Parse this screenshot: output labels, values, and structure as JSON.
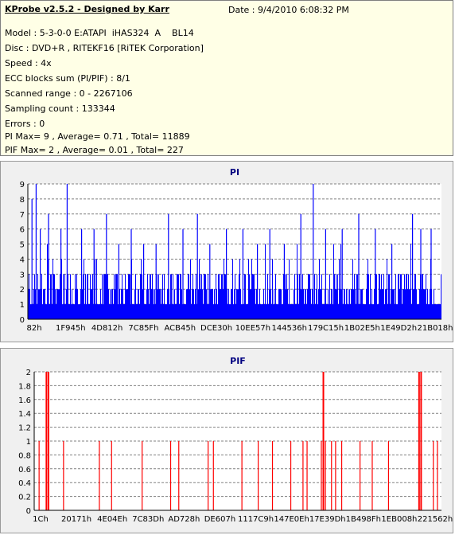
{
  "info": {
    "app_title": "KProbe v2.5.2 - Designed by Karr",
    "date": "Date : 9/4/2010 6:08:32 PM",
    "lines": [
      "Model : 5-3-0-0 E:ATAPI  iHAS324  A    BL14",
      "Disc : DVD+R , RITEKF16 [RiTEK Corporation]",
      "Speed : 4x",
      "ECC blocks sum (PI/PIF) : 8/1",
      "Scanned range : 0 - 2267106",
      "Sampling count : 133344",
      "Errors : 0",
      "PI Max= 9 , Average= 0.71 , Total= 11889",
      "PIF Max= 2 , Average= 0.01 , Total= 227"
    ]
  },
  "chart_data": [
    {
      "type": "bar",
      "title": "PI",
      "color": "#0000ff",
      "ylim": [
        0,
        9
      ],
      "yticks": [
        "0",
        "1",
        "2",
        "3",
        "4",
        "5",
        "6",
        "7",
        "8",
        "9"
      ],
      "xticks": [
        "82h",
        "1F945h",
        "4D812h",
        "7C85Fh",
        "ACB45h",
        "DCE30h",
        "10EE57h",
        "144536h",
        "179C15h",
        "1B02E5h",
        "1E49D2h",
        "21B018h"
      ],
      "grid": "dashed",
      "max": 9,
      "average": 0.71,
      "peaks": [
        {
          "pos": 0.01,
          "value": 8
        },
        {
          "pos": 0.02,
          "value": 9
        },
        {
          "pos": 0.03,
          "value": 6
        },
        {
          "pos": 0.05,
          "value": 7
        },
        {
          "pos": 0.08,
          "value": 6
        },
        {
          "pos": 0.095,
          "value": 9
        },
        {
          "pos": 0.13,
          "value": 6
        },
        {
          "pos": 0.16,
          "value": 6
        },
        {
          "pos": 0.19,
          "value": 7
        },
        {
          "pos": 0.22,
          "value": 5
        },
        {
          "pos": 0.25,
          "value": 6
        },
        {
          "pos": 0.28,
          "value": 5
        },
        {
          "pos": 0.31,
          "value": 5
        },
        {
          "pos": 0.34,
          "value": 7
        },
        {
          "pos": 0.375,
          "value": 6
        },
        {
          "pos": 0.41,
          "value": 7
        },
        {
          "pos": 0.44,
          "value": 5
        },
        {
          "pos": 0.48,
          "value": 6
        },
        {
          "pos": 0.52,
          "value": 6
        },
        {
          "pos": 0.555,
          "value": 5
        },
        {
          "pos": 0.585,
          "value": 6
        },
        {
          "pos": 0.62,
          "value": 5
        },
        {
          "pos": 0.66,
          "value": 7
        },
        {
          "pos": 0.69,
          "value": 9
        },
        {
          "pos": 0.72,
          "value": 6
        },
        {
          "pos": 0.76,
          "value": 6
        },
        {
          "pos": 0.8,
          "value": 7
        },
        {
          "pos": 0.84,
          "value": 6
        },
        {
          "pos": 0.88,
          "value": 5
        },
        {
          "pos": 0.93,
          "value": 7
        },
        {
          "pos": 0.95,
          "value": 6
        },
        {
          "pos": 0.975,
          "value": 6
        }
      ]
    },
    {
      "type": "bar",
      "title": "PIF",
      "color": "#ff0000",
      "ylim": [
        0,
        2
      ],
      "yticks": [
        "0",
        "0.2",
        "0.4",
        "0.6",
        "0.8",
        "1",
        "1.2",
        "1.4",
        "1.6",
        "1.8",
        "2"
      ],
      "xticks": [
        "1Ch",
        "20171h",
        "4E04Eh",
        "7C83Dh",
        "AD728h",
        "DE607h",
        "1117C9h",
        "147E0Eh",
        "17E39Dh",
        "1B498Fh",
        "1EB008h",
        "221562h"
      ],
      "grid": "dashed",
      "max": 2,
      "average": 0.01,
      "bars": [
        {
          "pos": 0.012,
          "value": 1
        },
        {
          "pos": 0.03,
          "value": 2
        },
        {
          "pos": 0.035,
          "value": 2
        },
        {
          "pos": 0.072,
          "value": 1
        },
        {
          "pos": 0.16,
          "value": 1
        },
        {
          "pos": 0.19,
          "value": 1
        },
        {
          "pos": 0.265,
          "value": 1
        },
        {
          "pos": 0.335,
          "value": 1
        },
        {
          "pos": 0.355,
          "value": 1
        },
        {
          "pos": 0.427,
          "value": 1
        },
        {
          "pos": 0.44,
          "value": 1
        },
        {
          "pos": 0.51,
          "value": 1
        },
        {
          "pos": 0.55,
          "value": 1
        },
        {
          "pos": 0.585,
          "value": 1
        },
        {
          "pos": 0.63,
          "value": 1
        },
        {
          "pos": 0.66,
          "value": 1
        },
        {
          "pos": 0.67,
          "value": 1
        },
        {
          "pos": 0.705,
          "value": 1
        },
        {
          "pos": 0.71,
          "value": 2
        },
        {
          "pos": 0.715,
          "value": 1
        },
        {
          "pos": 0.73,
          "value": 1
        },
        {
          "pos": 0.74,
          "value": 1
        },
        {
          "pos": 0.755,
          "value": 1
        },
        {
          "pos": 0.8,
          "value": 1
        },
        {
          "pos": 0.83,
          "value": 1
        },
        {
          "pos": 0.87,
          "value": 1
        },
        {
          "pos": 0.945,
          "value": 2
        },
        {
          "pos": 0.95,
          "value": 2
        },
        {
          "pos": 0.98,
          "value": 1
        },
        {
          "pos": 0.99,
          "value": 1
        }
      ]
    }
  ]
}
